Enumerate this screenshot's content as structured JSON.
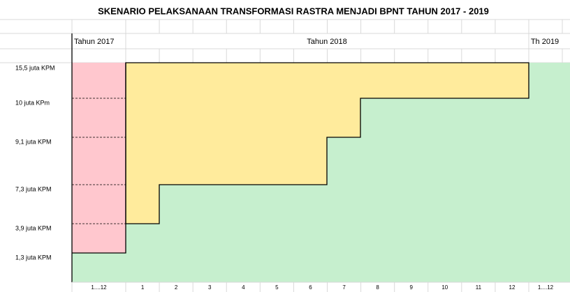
{
  "title": "SKENARIO PELAKSANAAN TRANSFORMASI RASTRA MENJADI BPNT TAHUN 2017 - 2019",
  "periods": [
    "Tahun 2017",
    "Tahun 2018",
    "Th 2019"
  ],
  "levels": [
    "15,5 juta KPM",
    "10 juta KPm",
    "9,1 juta KPM",
    "7,3 juta KPM",
    "3,9 juta KPM",
    "1,3 juta KPM"
  ],
  "columns": [
    "1....12",
    "1",
    "2",
    "3",
    "4",
    "5",
    "6",
    "7",
    "8",
    "9",
    "10",
    "11",
    "12",
    "1....12"
  ]
}
